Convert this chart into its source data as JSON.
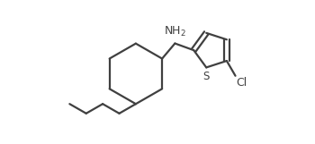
{
  "bg_color": "#ffffff",
  "line_color": "#404040",
  "text_color": "#404040",
  "line_width": 1.6,
  "nh2_label": "NH$_2$",
  "s_label": "S",
  "cl_label": "Cl",
  "figsize": [
    3.5,
    1.61
  ],
  "dpi": 100
}
